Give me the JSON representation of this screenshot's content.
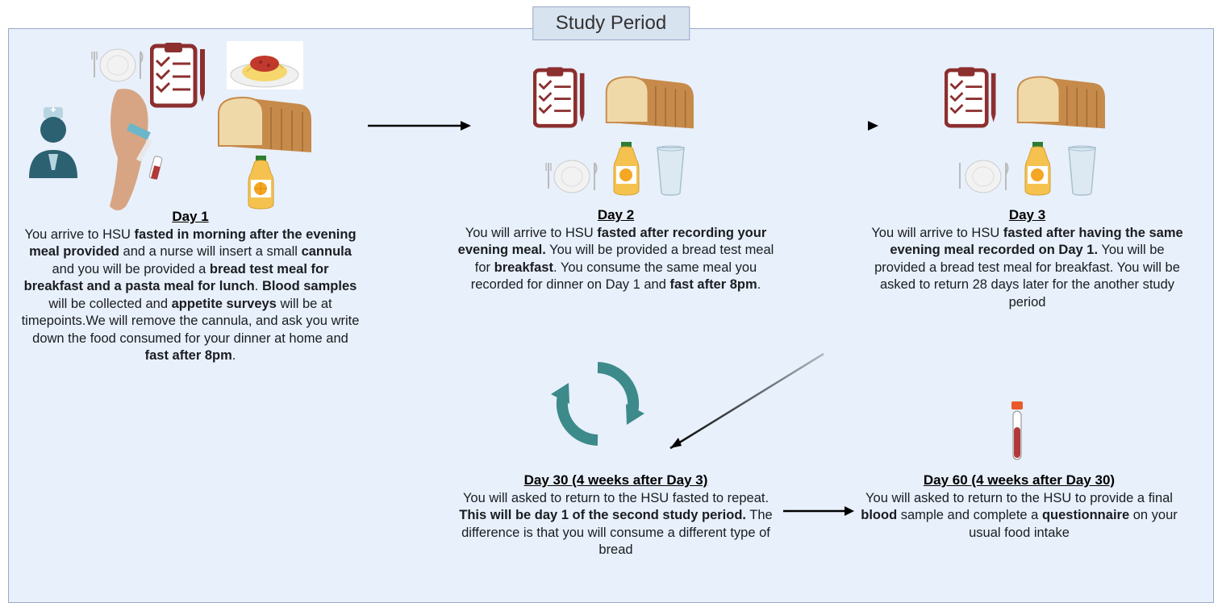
{
  "banner": "Study Period",
  "colors": {
    "panel_bg": "#e8f0fb",
    "panel_border": "#9aa9c7",
    "banner_bg": "#d8e3f0",
    "text": "#1a1d21",
    "clipboard": "#8c2f2f",
    "bread_crust": "#c68a4a",
    "bread_inner": "#f0d9a8",
    "juice_body": "#f5c250",
    "juice_cap": "#2e7d32",
    "pasta_sauce": "#c0392b",
    "pasta_noodle": "#f5d76e",
    "plate": "#e8e8e8",
    "nurse_body": "#2c6171",
    "nurse_face": "#2c6171",
    "arm_skin": "#d7a584",
    "blood": "#b23939",
    "glass_fill": "#dce9f2",
    "cycle_arrow": "#3d8a8a",
    "arrow": "#000000"
  },
  "panels": {
    "day1": {
      "heading": "Day 1",
      "html": "You arrive to HSU <span class='bold'>fasted in morning after the evening meal provided</span> and a nurse will insert a small <span class='bold'>cannula</span> and you will be provided a <span class='bold'>bread test meal for breakfast and a pasta meal for lunch</span>. <span class='bold'>Blood samples</span> will be collected and <span class='bold'>appetite surveys</span> will be at timepoints.We will remove the cannula, and ask you write down the food consumed for your dinner at home and <span class='bold'>fast after 8pm</span>."
    },
    "day2": {
      "heading": "Day 2",
      "html": "You will arrive to HSU  <span class='bold'>fasted after recording your evening meal.</span> You will be provided a bread test meal for <span class='bold'>breakfast</span>. You consume the same meal you recorded for dinner on Day 1 and <span class='bold'>fast after 8pm</span>."
    },
    "day3": {
      "heading": "Day 3",
      "html": "You will arrive to HSU  <span class='bold'>fasted after having the same evening meal recorded on Day 1.</span> You will be provided a bread test meal for breakfast. You will be asked to return 28 days later for the another study period"
    },
    "day30": {
      "heading": "Day 30 (4 weeks after Day 3)",
      "html": "You will asked to return to the HSU  fasted to repeat. <span class='bold'>This will be day 1 of the second study period.</span> The difference is that you will consume a different type of bread"
    },
    "day60": {
      "heading": "Day 60 (4 weeks after Day 30)",
      "html": "You will asked to return to the HSU to provide a final <span class='bold'>blood</span> sample and complete a <span class='bold'>questionnaire</span> on your usual food intake"
    }
  },
  "arrows": {
    "a1": {
      "from": "day1",
      "to": "day2",
      "type": "straight"
    },
    "a2": {
      "from": "day2",
      "to": "day3",
      "type": "straight"
    },
    "a3": {
      "from": "day3",
      "to": "day30",
      "type": "diagonal"
    },
    "a4": {
      "from": "day30",
      "to": "day60",
      "type": "straight"
    },
    "cycle": {
      "type": "circular",
      "color": "#3d8a8a"
    }
  },
  "icons": {
    "nurse": "nurse-icon",
    "arm": "arm-cannula-icon",
    "clipboard": "clipboard-icon",
    "plate": "plate-icon",
    "pasta": "pasta-icon",
    "bread": "bread-icon",
    "juice": "juice-bottle-icon",
    "glass": "water-glass-icon",
    "blood_tube": "blood-tube-icon"
  }
}
